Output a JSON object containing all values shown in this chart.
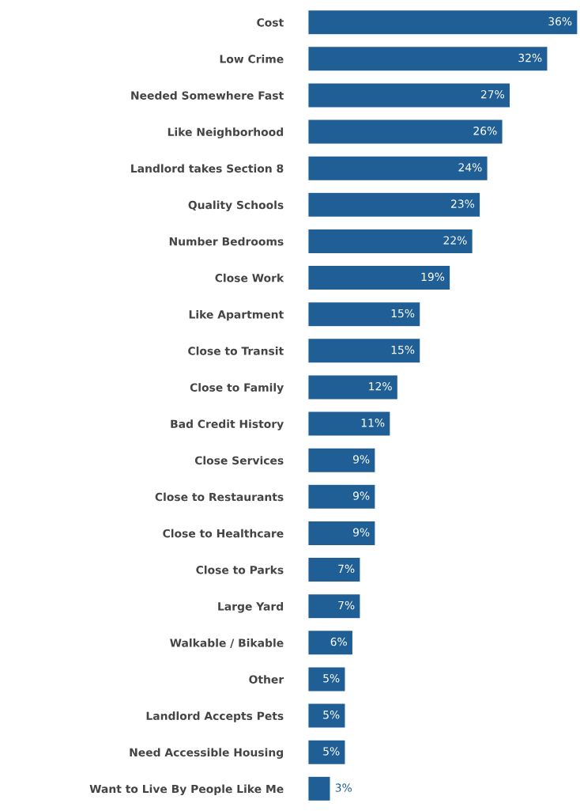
{
  "chart_data": {
    "type": "bar",
    "orientation": "horizontal",
    "categories": [
      "Cost",
      "Low Crime",
      "Needed Somewhere Fast",
      "Like Neighborhood",
      "Landlord takes Section 8",
      "Quality Schools",
      "Number Bedrooms",
      "Close Work",
      "Like Apartment",
      "Close to Transit",
      "Close to Family",
      "Bad Credit History",
      "Close Services",
      "Close to Restaurants",
      "Close to Healthcare",
      "Close to Parks",
      "Large Yard",
      "Walkable / Bikable",
      "Other",
      "Landlord Accepts Pets",
      "Need Accessible Housing",
      "Want to Live By People Like Me"
    ],
    "values": [
      36,
      32,
      27,
      26,
      24,
      23,
      22,
      19,
      15,
      15,
      12,
      11,
      9,
      9,
      9,
      7,
      7,
      6,
      5,
      5,
      5,
      3
    ],
    "value_labels": [
      "36%",
      "32%",
      "27%",
      "26%",
      "24%",
      "23%",
      "22%",
      "19%",
      "15%",
      "15%",
      "12%",
      "11%",
      "9%",
      "9%",
      "9%",
      "7%",
      "7%",
      "6%",
      "5%",
      "5%",
      "5%",
      "3%"
    ],
    "color": "#1f5f96",
    "grid": false,
    "legend": false
  }
}
